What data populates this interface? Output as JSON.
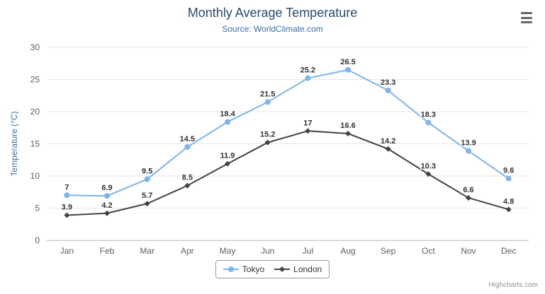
{
  "header": {
    "title": "Monthly Average Temperature",
    "subtitle": "Source: WorldClimate.com"
  },
  "credits": "Highcharts.com",
  "colors": {
    "title": "#274b6d",
    "subtitle": "#3d6fa5",
    "axis_title": "#3d6fa5",
    "axis_label": "#606060",
    "data_label": "#333333",
    "grid": "#e6e6e6",
    "axis_line": "#c0c8d0",
    "tokyo": "#7cb5ec",
    "london": "#434348"
  },
  "chart_data": {
    "type": "line",
    "title": "Monthly Average Temperature",
    "subtitle": "Source: WorldClimate.com",
    "categories": [
      "Jan",
      "Feb",
      "Mar",
      "Apr",
      "May",
      "Jun",
      "Jul",
      "Aug",
      "Sep",
      "Oct",
      "Nov",
      "Dec"
    ],
    "series": [
      {
        "name": "Tokyo",
        "color": "#7cb5ec",
        "marker": "circle",
        "values": [
          7,
          6.9,
          9.5,
          14.5,
          18.4,
          21.5,
          25.2,
          26.5,
          23.3,
          18.3,
          13.9,
          9.6
        ]
      },
      {
        "name": "London",
        "color": "#434348",
        "marker": "diamond",
        "values": [
          3.9,
          4.2,
          5.7,
          8.5,
          11.9,
          15.2,
          17,
          16.6,
          14.2,
          10.3,
          6.6,
          4.8
        ]
      }
    ],
    "xlabel": "",
    "ylabel": "Temperature (°C)",
    "ylim": [
      0,
      30
    ],
    "ytick_interval": 5,
    "grid": true,
    "data_labels": true,
    "legend_position": "bottom"
  }
}
